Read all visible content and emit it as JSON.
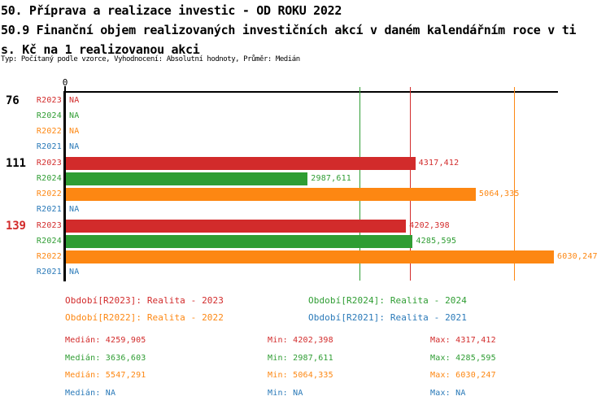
{
  "title": {
    "line1": "50. Příprava a realizace investic - OD ROKU 2022",
    "line2": "50.9 Finanční objem realizovaných investičních akcí v daném kalendářním roce v ti",
    "line3": "s. Kč na 1 realizovanou akci",
    "meta": "Typ: Počítaný podle vzorce, Vyhodnocení: Absolutní hodnoty, Průměr: Medián"
  },
  "chart_data": {
    "type": "bar",
    "orientation": "horizontal",
    "title": "50.9 Finanční objem realizovaných investičních akcí v daném kalendářním roce v tis. Kč na 1 realizovanou akci",
    "x_axis": {
      "min": 0,
      "zero_label": "0",
      "approx_visible_max": 6090,
      "grid": false
    },
    "na_text": "NA",
    "series": [
      {
        "key": "R2023",
        "name": "Realita - 2023",
        "color": "#d22b2b"
      },
      {
        "key": "R2024",
        "name": "Realita - 2024",
        "color": "#2f9d33"
      },
      {
        "key": "R2022",
        "name": "Realita - 2022",
        "color": "#fd8712"
      },
      {
        "key": "R2021",
        "name": "Realita - 2021",
        "color": "#2979b8"
      }
    ],
    "groups": [
      {
        "label": "76",
        "label_color": "#000000",
        "values": [
          {
            "series": "R2023",
            "value": null,
            "display": "NA"
          },
          {
            "series": "R2024",
            "value": null,
            "display": "NA"
          },
          {
            "series": "R2022",
            "value": null,
            "display": "NA"
          },
          {
            "series": "R2021",
            "value": null,
            "display": "NA"
          }
        ]
      },
      {
        "label": "111",
        "label_color": "#000000",
        "values": [
          {
            "series": "R2023",
            "value": 4317.412,
            "display": "4317,412"
          },
          {
            "series": "R2024",
            "value": 2987.611,
            "display": "2987,611"
          },
          {
            "series": "R2022",
            "value": 5064.335,
            "display": "5064,335"
          },
          {
            "series": "R2021",
            "value": null,
            "display": "NA"
          }
        ]
      },
      {
        "label": "139",
        "label_color": "#d22b2b",
        "values": [
          {
            "series": "R2023",
            "value": 4202.398,
            "display": "4202,398"
          },
          {
            "series": "R2024",
            "value": 4285.595,
            "display": "4285,595"
          },
          {
            "series": "R2022",
            "value": 6030.247,
            "display": "6030,247"
          },
          {
            "series": "R2021",
            "value": null,
            "display": "NA"
          }
        ]
      }
    ],
    "median_lines": [
      {
        "series": "R2023",
        "value": 4259.905
      },
      {
        "series": "R2024",
        "value": 3636.603
      },
      {
        "series": "R2022",
        "value": 5547.291
      }
    ]
  },
  "legend": {
    "items": [
      {
        "series": "R2023",
        "text": "Období[R2023]: Realita - 2023"
      },
      {
        "series": "R2024",
        "text": "Období[R2024]: Realita - 2024"
      },
      {
        "series": "R2022",
        "text": "Období[R2022]: Realita - 2022"
      },
      {
        "series": "R2021",
        "text": "Období[R2021]: Realita - 2021"
      }
    ]
  },
  "stats": {
    "labels": {
      "median": "Medián",
      "min": "Min",
      "max": "Max"
    },
    "rows": [
      {
        "series": "R2023",
        "median": "4259,905",
        "min": "4202,398",
        "max": "4317,412"
      },
      {
        "series": "R2024",
        "median": "3636,603",
        "min": "2987,611",
        "max": "4285,595"
      },
      {
        "series": "R2022",
        "median": "5547,291",
        "min": "5064,335",
        "max": "6030,247"
      },
      {
        "series": "R2021",
        "median": "NA",
        "min": "NA",
        "max": "NA"
      }
    ]
  }
}
